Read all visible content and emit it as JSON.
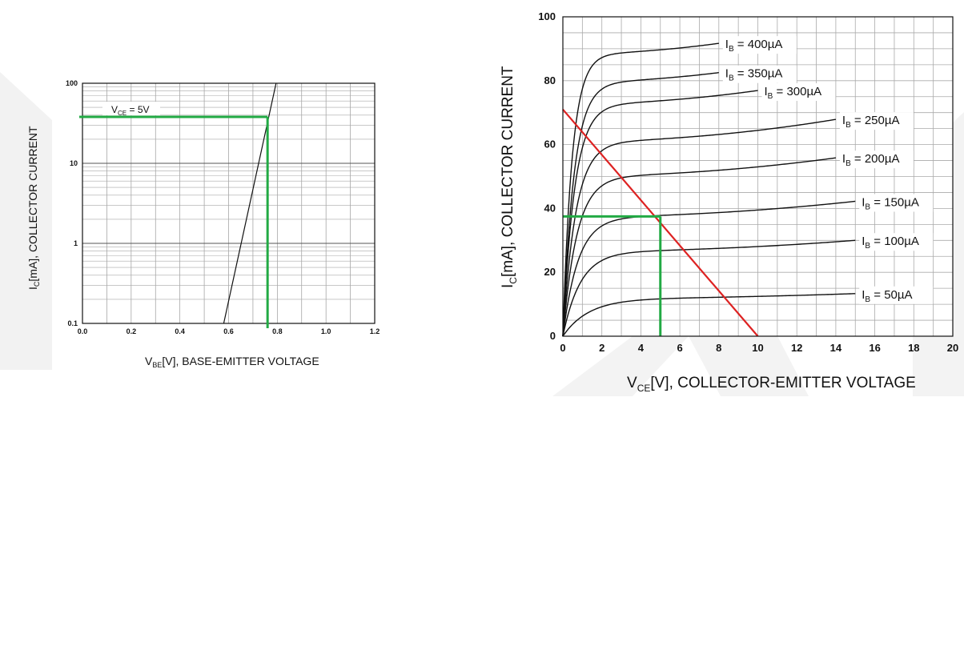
{
  "chart_data": [
    {
      "type": "line",
      "y_scale": "log",
      "ylabel": {
        "main": "I",
        "sub": "C",
        "rest": "[mA], COLLECTOR CURRENT"
      },
      "xlabel": {
        "main": "V",
        "sub": "BE",
        "rest": "[V], BASE-EMITTER VOLTAGE"
      },
      "xlim": [
        0.0,
        1.2
      ],
      "ylim": [
        0.1,
        100
      ],
      "x_ticks": [
        "0.0",
        "0.2",
        "0.4",
        "0.6",
        "0.8",
        "1.0",
        "1.2"
      ],
      "y_ticks": [
        {
          "value": 0.1,
          "label": "0.1"
        },
        {
          "value": 1,
          "label": "1"
        },
        {
          "value": 10,
          "label": "10"
        },
        {
          "value": 100,
          "label": "100"
        }
      ],
      "grid": true,
      "annotation": {
        "main": "V",
        "sub": "CE",
        "rest": " = 5V"
      },
      "series": [
        {
          "points": [
            [
              0.58,
              0.1
            ],
            [
              0.795,
              100
            ]
          ],
          "color": "#111111"
        }
      ],
      "operating_point": {
        "x": 0.76,
        "y": 38,
        "color": "#22aa44"
      }
    },
    {
      "type": "line",
      "ylabel": {
        "main": "I",
        "sub": "C",
        "rest": "[mA], COLLECTOR CURRENT"
      },
      "xlabel": {
        "main": "V",
        "sub": "CE",
        "rest": "[V], COLLECTOR-EMITTER VOLTAGE"
      },
      "xlim": [
        0,
        20
      ],
      "ylim": [
        0,
        100
      ],
      "x_ticks": [
        "0",
        "2",
        "4",
        "6",
        "8",
        "10",
        "12",
        "14",
        "16",
        "18",
        "20"
      ],
      "y_ticks": [
        "0",
        "20",
        "40",
        "60",
        "80",
        "100"
      ],
      "grid": true,
      "series": [
        {
          "label_main": "I",
          "label_sub": "B",
          "label_rest": " = 400µA",
          "sat": 90,
          "xend": 8,
          "k": 0.8
        },
        {
          "label_main": "I",
          "label_sub": "B",
          "label_rest": " = 350µA",
          "sat": 81,
          "xend": 8,
          "k": 0.95
        },
        {
          "label_main": "I",
          "label_sub": "B",
          "label_rest": " = 300µA",
          "sat": 74,
          "xend": 10,
          "k": 1.0
        },
        {
          "label_main": "I",
          "label_sub": "B",
          "label_rest": " = 250µA",
          "sat": 62,
          "xend": 14,
          "k": 1.1
        },
        {
          "label_main": "I",
          "label_sub": "B",
          "label_rest": " = 200µA",
          "sat": 51,
          "xend": 14,
          "k": 1.2
        },
        {
          "label_main": "I",
          "label_sub": "B",
          "label_rest": " = 150µA",
          "sat": 38,
          "xend": 15,
          "k": 1.3
        },
        {
          "label_main": "I",
          "label_sub": "B",
          "label_rest": " = 100µA",
          "sat": 27,
          "xend": 15,
          "k": 1.5
        },
        {
          "label_main": "I",
          "label_sub": "B",
          "label_rest": " = 50µA",
          "sat": 12,
          "xend": 15,
          "k": 2.2
        }
      ],
      "load_line": {
        "points": [
          [
            0,
            71
          ],
          [
            10,
            0
          ]
        ],
        "color": "#dd2222"
      },
      "operating_point": {
        "x": 5,
        "y": 37.5,
        "color": "#22aa44"
      }
    }
  ]
}
